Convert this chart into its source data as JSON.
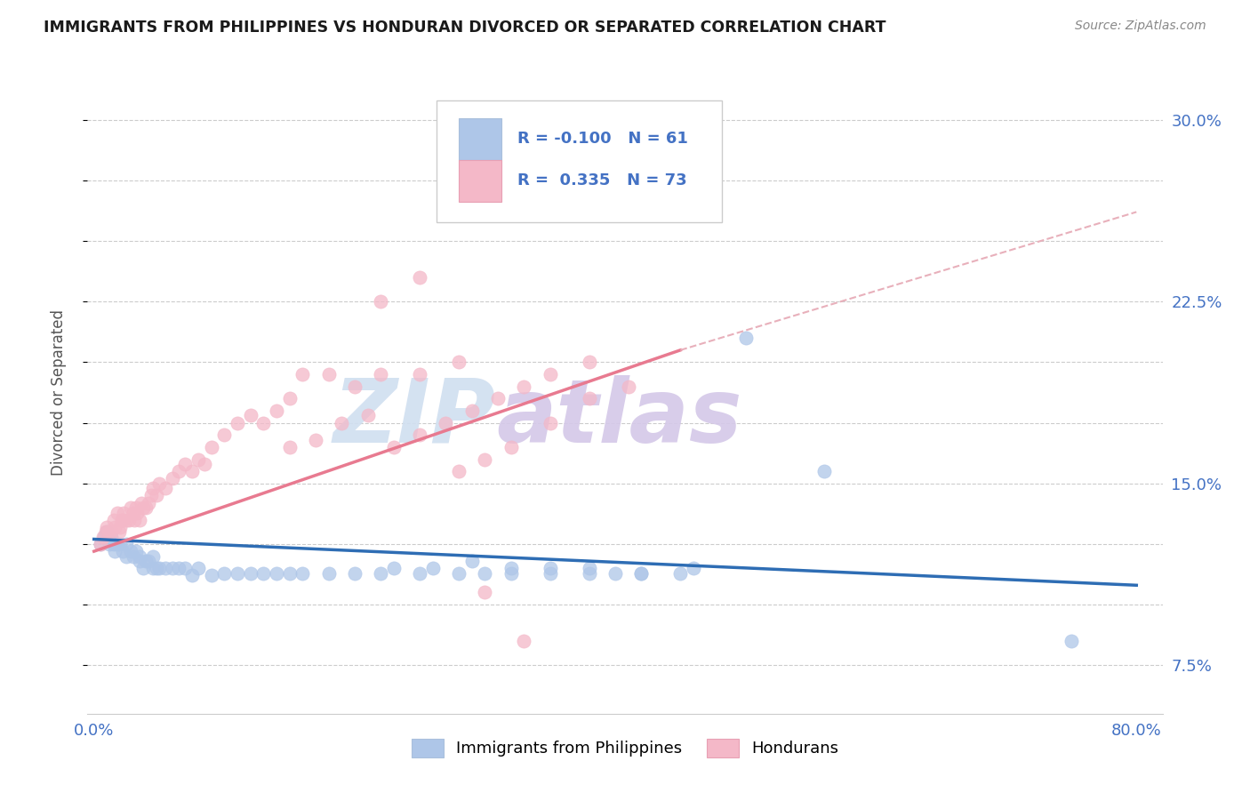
{
  "title": "IMMIGRANTS FROM PHILIPPINES VS HONDURAN DIVORCED OR SEPARATED CORRELATION CHART",
  "source_text": "Source: ZipAtlas.com",
  "ylabel": "Divorced or Separated",
  "ylim": [
    0.055,
    0.32
  ],
  "xlim": [
    -0.005,
    0.82
  ],
  "legend_r_blue": "-0.100",
  "legend_n_blue": "61",
  "legend_r_pink": "0.335",
  "legend_n_pink": "73",
  "legend_label_blue": "Immigrants from Philippines",
  "legend_label_pink": "Hondurans",
  "blue_dot_color": "#aec6e8",
  "pink_dot_color": "#f4b8c8",
  "blue_line_color": "#2e6db4",
  "pink_line_color": "#e87a90",
  "pink_dash_color": "#e8b0bb",
  "title_color": "#1a1a1a",
  "axis_tick_color": "#4472c4",
  "watermark_color": "#d0dff0",
  "watermark_color2": "#d4c8e8",
  "blue_x": [
    0.005,
    0.008,
    0.01,
    0.012,
    0.013,
    0.015,
    0.016,
    0.018,
    0.02,
    0.022,
    0.025,
    0.025,
    0.028,
    0.03,
    0.032,
    0.035,
    0.035,
    0.038,
    0.04,
    0.042,
    0.045,
    0.045,
    0.048,
    0.05,
    0.055,
    0.06,
    0.065,
    0.07,
    0.075,
    0.08,
    0.09,
    0.1,
    0.11,
    0.12,
    0.13,
    0.14,
    0.15,
    0.16,
    0.18,
    0.2,
    0.22,
    0.25,
    0.28,
    0.3,
    0.32,
    0.35,
    0.38,
    0.4,
    0.42,
    0.45,
    0.23,
    0.26,
    0.29,
    0.32,
    0.35,
    0.38,
    0.42,
    0.46,
    0.5,
    0.56,
    0.75
  ],
  "blue_y": [
    0.125,
    0.128,
    0.13,
    0.125,
    0.128,
    0.125,
    0.122,
    0.125,
    0.125,
    0.122,
    0.12,
    0.125,
    0.122,
    0.12,
    0.122,
    0.118,
    0.12,
    0.115,
    0.118,
    0.118,
    0.115,
    0.12,
    0.115,
    0.115,
    0.115,
    0.115,
    0.115,
    0.115,
    0.112,
    0.115,
    0.112,
    0.113,
    0.113,
    0.113,
    0.113,
    0.113,
    0.113,
    0.113,
    0.113,
    0.113,
    0.113,
    0.113,
    0.113,
    0.113,
    0.113,
    0.113,
    0.113,
    0.113,
    0.113,
    0.113,
    0.115,
    0.115,
    0.118,
    0.115,
    0.115,
    0.115,
    0.113,
    0.115,
    0.21,
    0.155,
    0.085
  ],
  "pink_x": [
    0.005,
    0.007,
    0.009,
    0.01,
    0.011,
    0.013,
    0.015,
    0.016,
    0.018,
    0.019,
    0.02,
    0.021,
    0.022,
    0.023,
    0.025,
    0.027,
    0.028,
    0.03,
    0.031,
    0.032,
    0.033,
    0.035,
    0.036,
    0.038,
    0.04,
    0.042,
    0.044,
    0.045,
    0.048,
    0.05,
    0.055,
    0.06,
    0.065,
    0.07,
    0.075,
    0.08,
    0.085,
    0.09,
    0.1,
    0.11,
    0.12,
    0.13,
    0.14,
    0.15,
    0.16,
    0.18,
    0.2,
    0.22,
    0.25,
    0.28,
    0.15,
    0.17,
    0.19,
    0.21,
    0.23,
    0.25,
    0.27,
    0.29,
    0.31,
    0.33,
    0.35,
    0.38,
    0.28,
    0.3,
    0.32,
    0.35,
    0.38,
    0.41,
    0.22,
    0.25,
    0.28,
    0.3,
    0.33
  ],
  "pink_y": [
    0.125,
    0.128,
    0.13,
    0.132,
    0.13,
    0.13,
    0.135,
    0.132,
    0.138,
    0.13,
    0.132,
    0.135,
    0.135,
    0.138,
    0.135,
    0.135,
    0.14,
    0.138,
    0.135,
    0.14,
    0.138,
    0.135,
    0.142,
    0.14,
    0.14,
    0.142,
    0.145,
    0.148,
    0.145,
    0.15,
    0.148,
    0.152,
    0.155,
    0.158,
    0.155,
    0.16,
    0.158,
    0.165,
    0.17,
    0.175,
    0.178,
    0.175,
    0.18,
    0.185,
    0.195,
    0.195,
    0.19,
    0.195,
    0.195,
    0.2,
    0.165,
    0.168,
    0.175,
    0.178,
    0.165,
    0.17,
    0.175,
    0.18,
    0.185,
    0.19,
    0.195,
    0.2,
    0.155,
    0.16,
    0.165,
    0.175,
    0.185,
    0.19,
    0.225,
    0.235,
    0.285,
    0.105,
    0.085
  ]
}
